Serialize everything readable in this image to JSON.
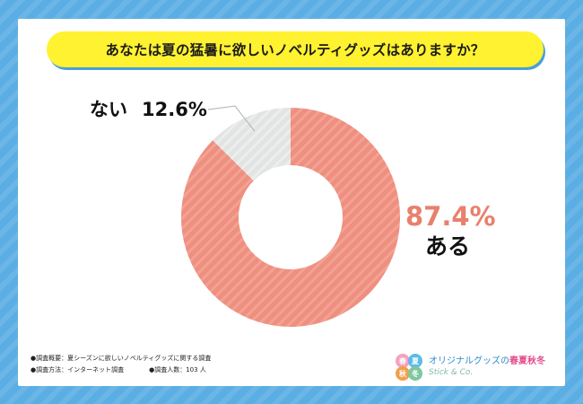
{
  "title": "あなたは夏の猛暑に欲しいノベルティグッズはありますか？",
  "chart_data": {
    "type": "pie",
    "donut": true,
    "title": "あなたは夏の猛暑に欲しいノベルティグッズはありますか？",
    "slices": [
      {
        "label": "ある",
        "value": 87.4,
        "value_label": "87.4%",
        "color": "#ef8f7f"
      },
      {
        "label": "ない",
        "value": 12.6,
        "value_label": "12.6%",
        "color": "#e4e6e6"
      }
    ]
  },
  "footnotes": {
    "overview": "●調査概要：夏シーズンに欲しいノベルティグッズに関する調査",
    "method": "●調査方法：インターネット調査",
    "respondents": "●調査人数：103 人"
  },
  "logo": {
    "name": "オリジナルグッズの",
    "season": "春夏秋冬",
    "sub": "Stick & Co.",
    "flower_chars": [
      "春",
      "夏",
      "秋",
      "冬"
    ],
    "flower_colors": [
      "#f4a3c0",
      "#5dbbe8",
      "#f0a04b",
      "#7ec7a0"
    ]
  }
}
